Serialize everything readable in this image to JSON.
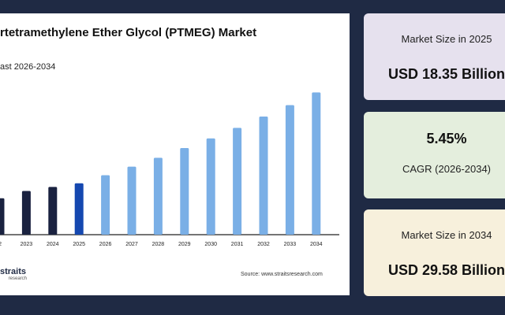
{
  "chart": {
    "title": "rtetramethylene Ether Glycol (PTMEG) Market",
    "subtitle": "ast 2026-2034",
    "source": "Source: www.straitsresearch.com",
    "logo_main": "straits",
    "logo_sub": "research"
  },
  "chart_data": {
    "type": "bar",
    "categories": [
      "22",
      "2023",
      "2024",
      "2025",
      "2026",
      "2027",
      "2028",
      "2029",
      "2030",
      "2031",
      "2032",
      "2033",
      "2034"
    ],
    "values": [
      16.5,
      17.4,
      17.9,
      18.35,
      19.35,
      20.4,
      21.5,
      22.7,
      23.9,
      25.2,
      26.6,
      28.0,
      29.58
    ],
    "ylim": [
      12,
      30
    ],
    "grid": false,
    "bar_colors": {
      "history": "#1a2240",
      "current": "#1548b0",
      "forecast": "#7aafe6"
    },
    "highlight_category": "2025",
    "history_categories": [
      "22",
      "2023",
      "2024"
    ]
  },
  "cards": [
    {
      "label": "Market Size in 2025",
      "value": "USD 18.35 Billion"
    },
    {
      "label": "CAGR (2026-2034)",
      "value": "5.45%"
    },
    {
      "label": "Market Size in 2034",
      "value": "USD 29.58 Billion"
    }
  ]
}
